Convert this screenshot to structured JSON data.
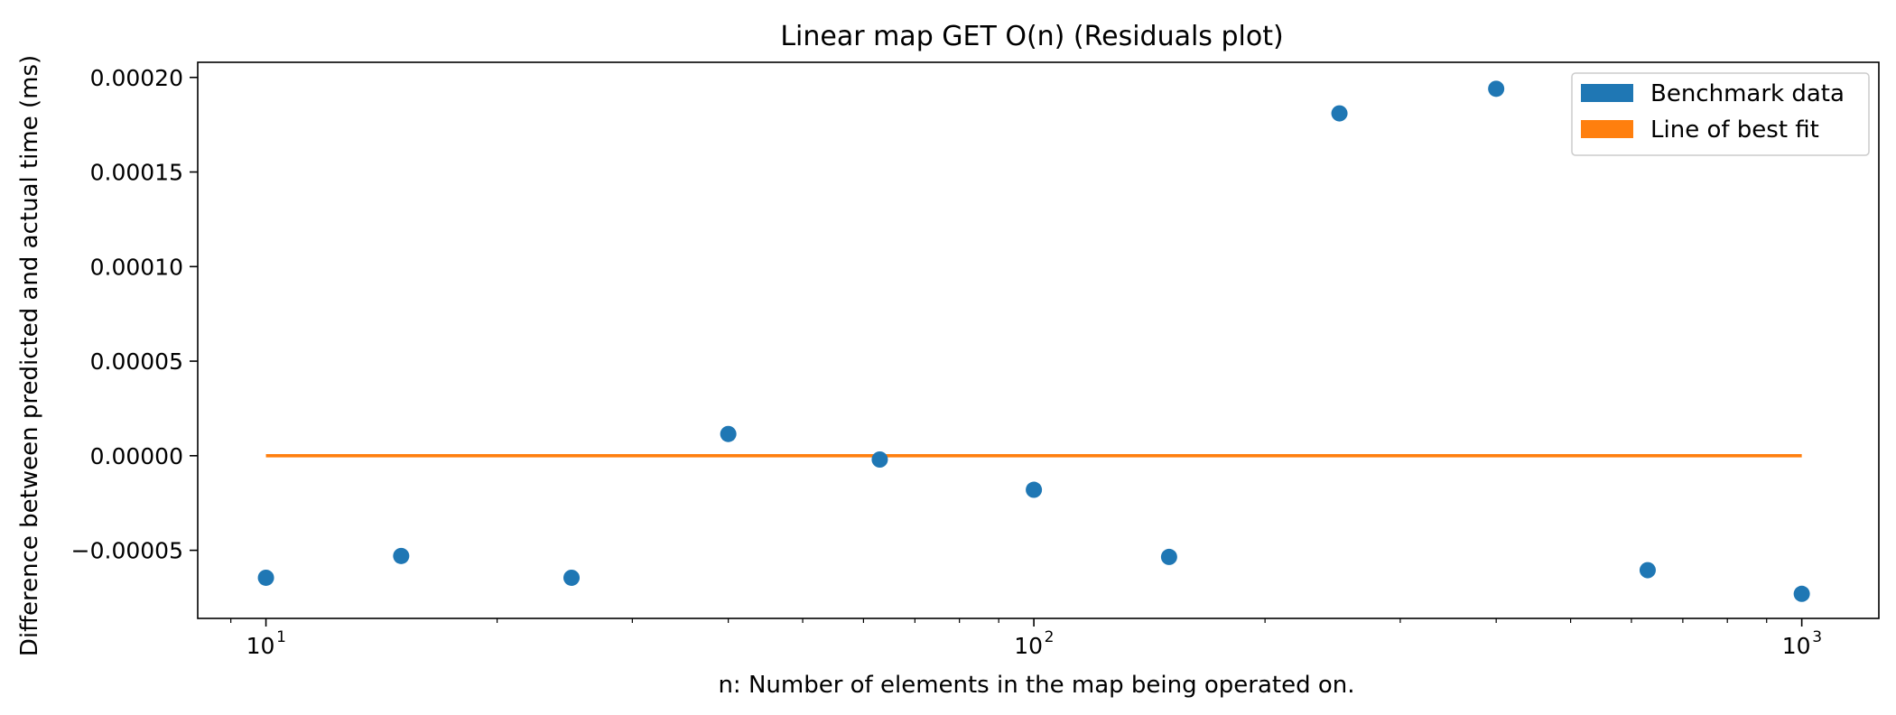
{
  "chart_data": {
    "type": "scatter",
    "title": "Linear map GET O(n)  (Residuals plot)",
    "xlabel": "n: Number of elements in the map being operated on.",
    "ylabel": "Difference between predicted and actual time (ms)",
    "x_scale": "log",
    "xlim": [
      8.15,
      1260
    ],
    "ylim": [
      -8.6e-05,
      0.000208
    ],
    "x_ticks": [
      {
        "value": 10,
        "base": "10",
        "exp": "1"
      },
      {
        "value": 100,
        "base": "10",
        "exp": "2"
      },
      {
        "value": 1000,
        "base": "10",
        "exp": "3"
      }
    ],
    "y_ticks": [
      {
        "value": -5e-05,
        "label": "−0.00005"
      },
      {
        "value": 0.0,
        "label": "0.00000"
      },
      {
        "value": 5e-05,
        "label": "0.00005"
      },
      {
        "value": 0.0001,
        "label": "0.00010"
      },
      {
        "value": 0.00015,
        "label": "0.00015"
      },
      {
        "value": 0.0002,
        "label": "0.00020"
      }
    ],
    "grid": false,
    "legend_position": "upper right",
    "series": [
      {
        "name": "Benchmark data",
        "kind": "scatter",
        "color": "#1f77b4",
        "points": [
          {
            "x": 10,
            "y": -6.45e-05
          },
          {
            "x": 15,
            "y": -5.3e-05
          },
          {
            "x": 25,
            "y": -6.45e-05
          },
          {
            "x": 40,
            "y": 1.15e-05
          },
          {
            "x": 63,
            "y": -2e-06
          },
          {
            "x": 100,
            "y": -1.8e-05
          },
          {
            "x": 150,
            "y": -5.35e-05
          },
          {
            "x": 250,
            "y": 0.000181
          },
          {
            "x": 400,
            "y": 0.000194
          },
          {
            "x": 630,
            "y": -6.05e-05
          },
          {
            "x": 1000,
            "y": -7.3e-05
          }
        ]
      },
      {
        "name": "Line of best fit",
        "kind": "line",
        "color": "#ff7f0e",
        "points": [
          {
            "x": 10,
            "y": 0.0
          },
          {
            "x": 1000,
            "y": 0.0
          }
        ]
      }
    ]
  }
}
